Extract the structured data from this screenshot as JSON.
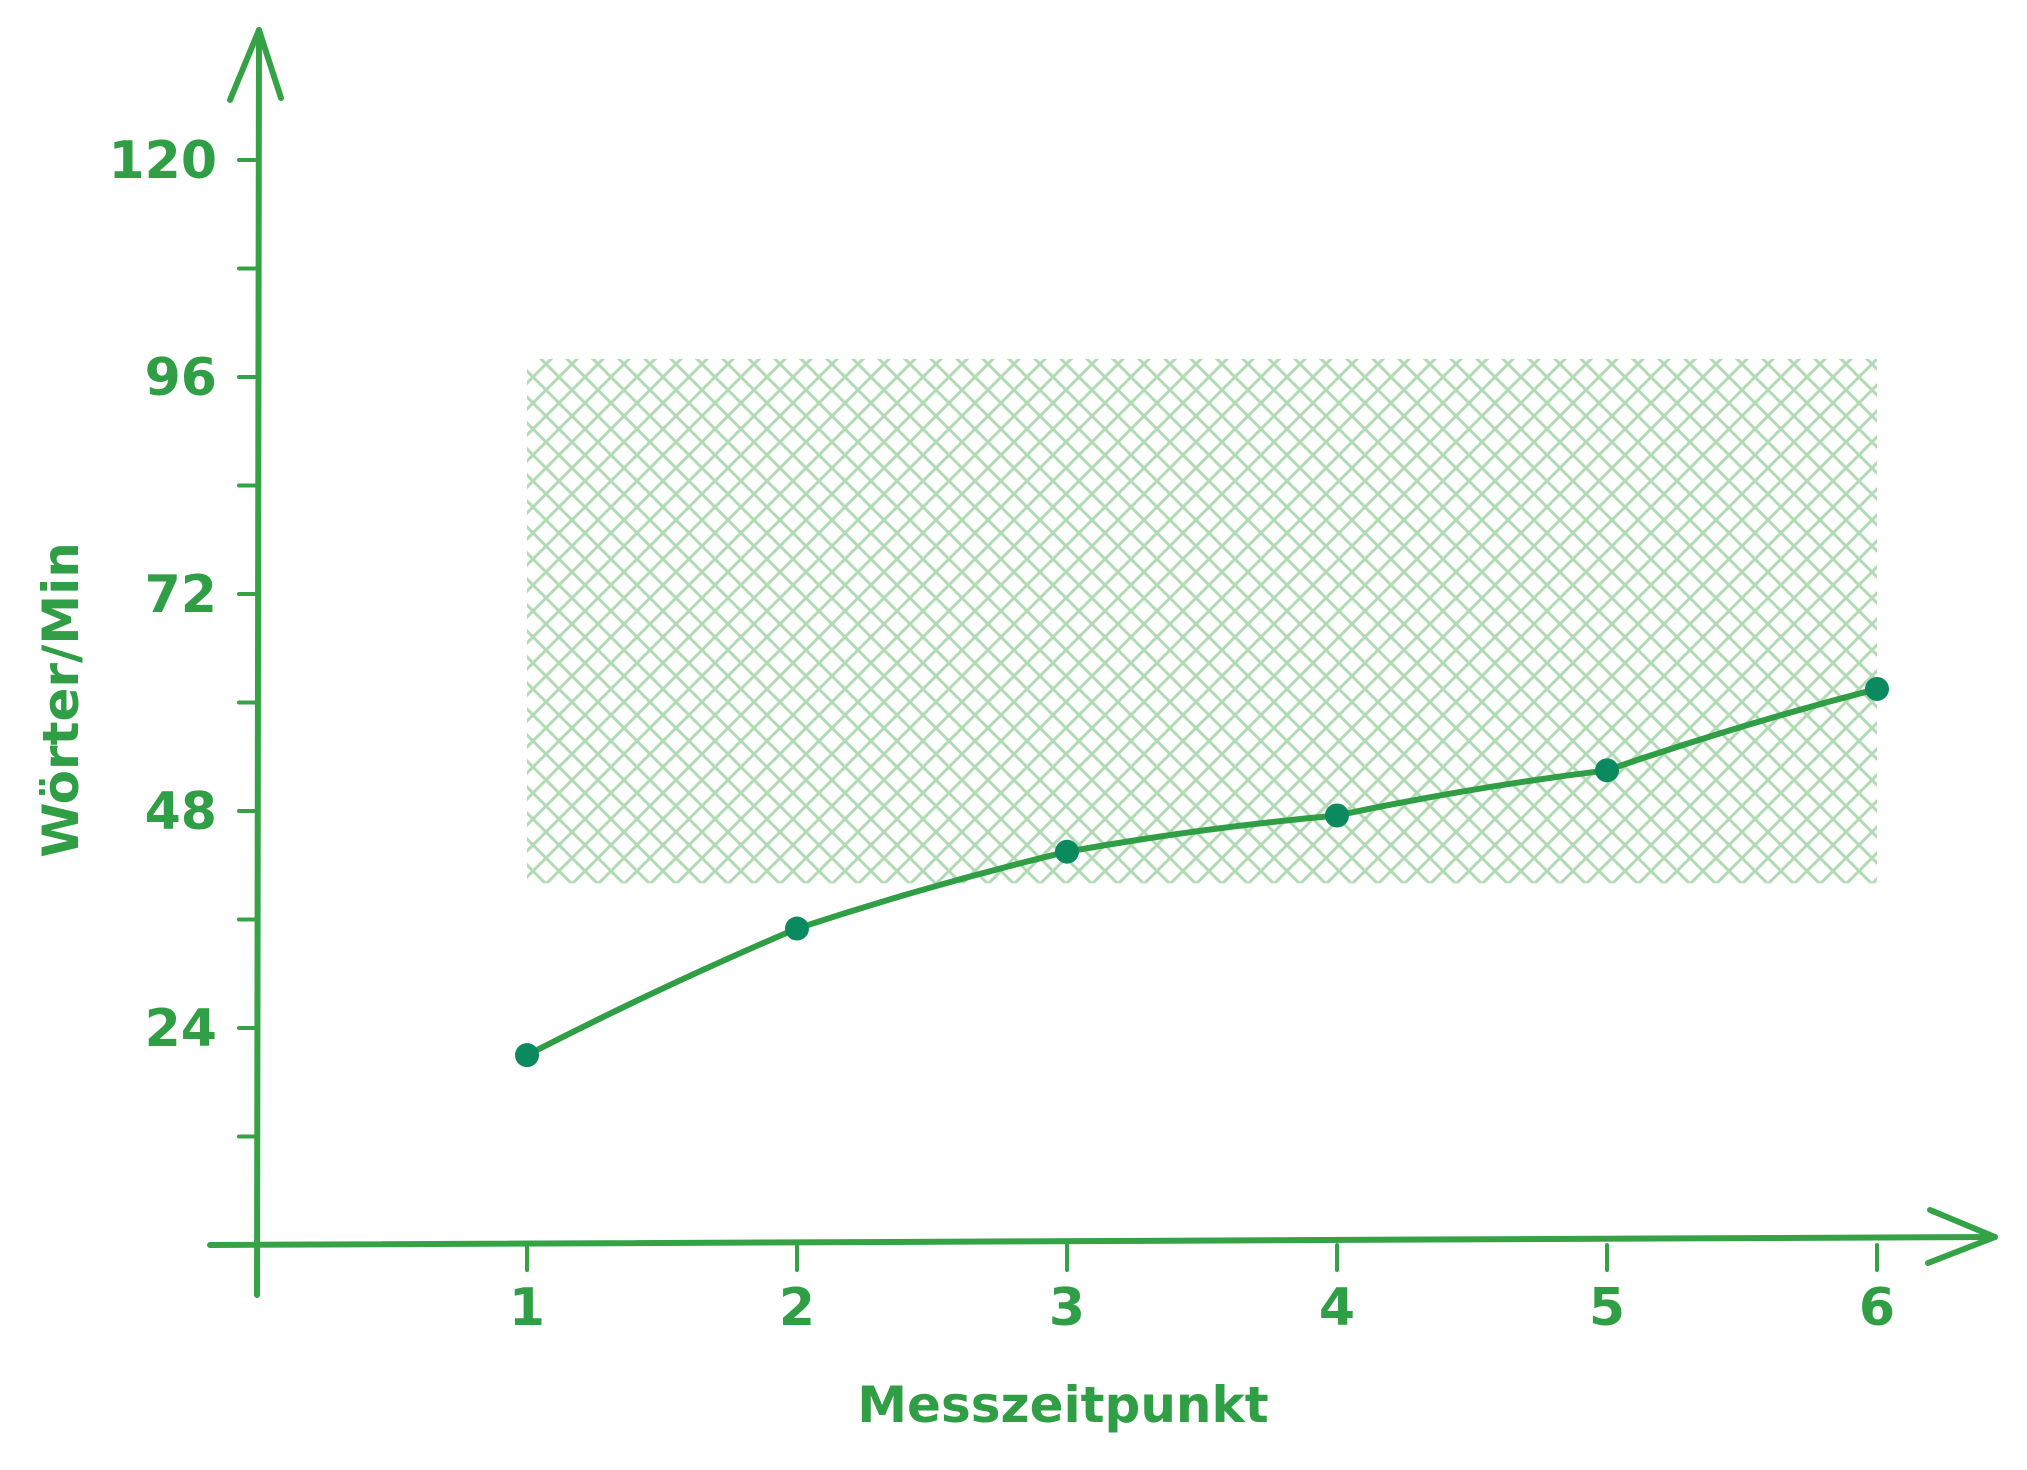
{
  "chart_data": {
    "type": "line",
    "title": "",
    "xlabel": "Messzeitpunkt",
    "ylabel": "Wörter/Min",
    "x": [
      1,
      2,
      3,
      4,
      5,
      6
    ],
    "x_ticks": [
      "1",
      "2",
      "3",
      "4",
      "5",
      "6"
    ],
    "y_ticks": [
      "24",
      "48",
      "72",
      "96",
      "120"
    ],
    "ylim": [
      0,
      132
    ],
    "xlim": [
      0,
      6.5
    ],
    "series": [
      {
        "values": [
          21,
          35,
          43.5,
          47.5,
          52.5,
          61.5
        ]
      }
    ],
    "band": {
      "x_from": 1,
      "x_to": 6,
      "y_low": 40,
      "y_high": 98
    },
    "grid": false,
    "colors": {
      "axis": "#34a245",
      "line": "#2f9e44",
      "point": "#0c8a5f",
      "band": "#b2dbb5",
      "text": "#2f9e44"
    }
  }
}
